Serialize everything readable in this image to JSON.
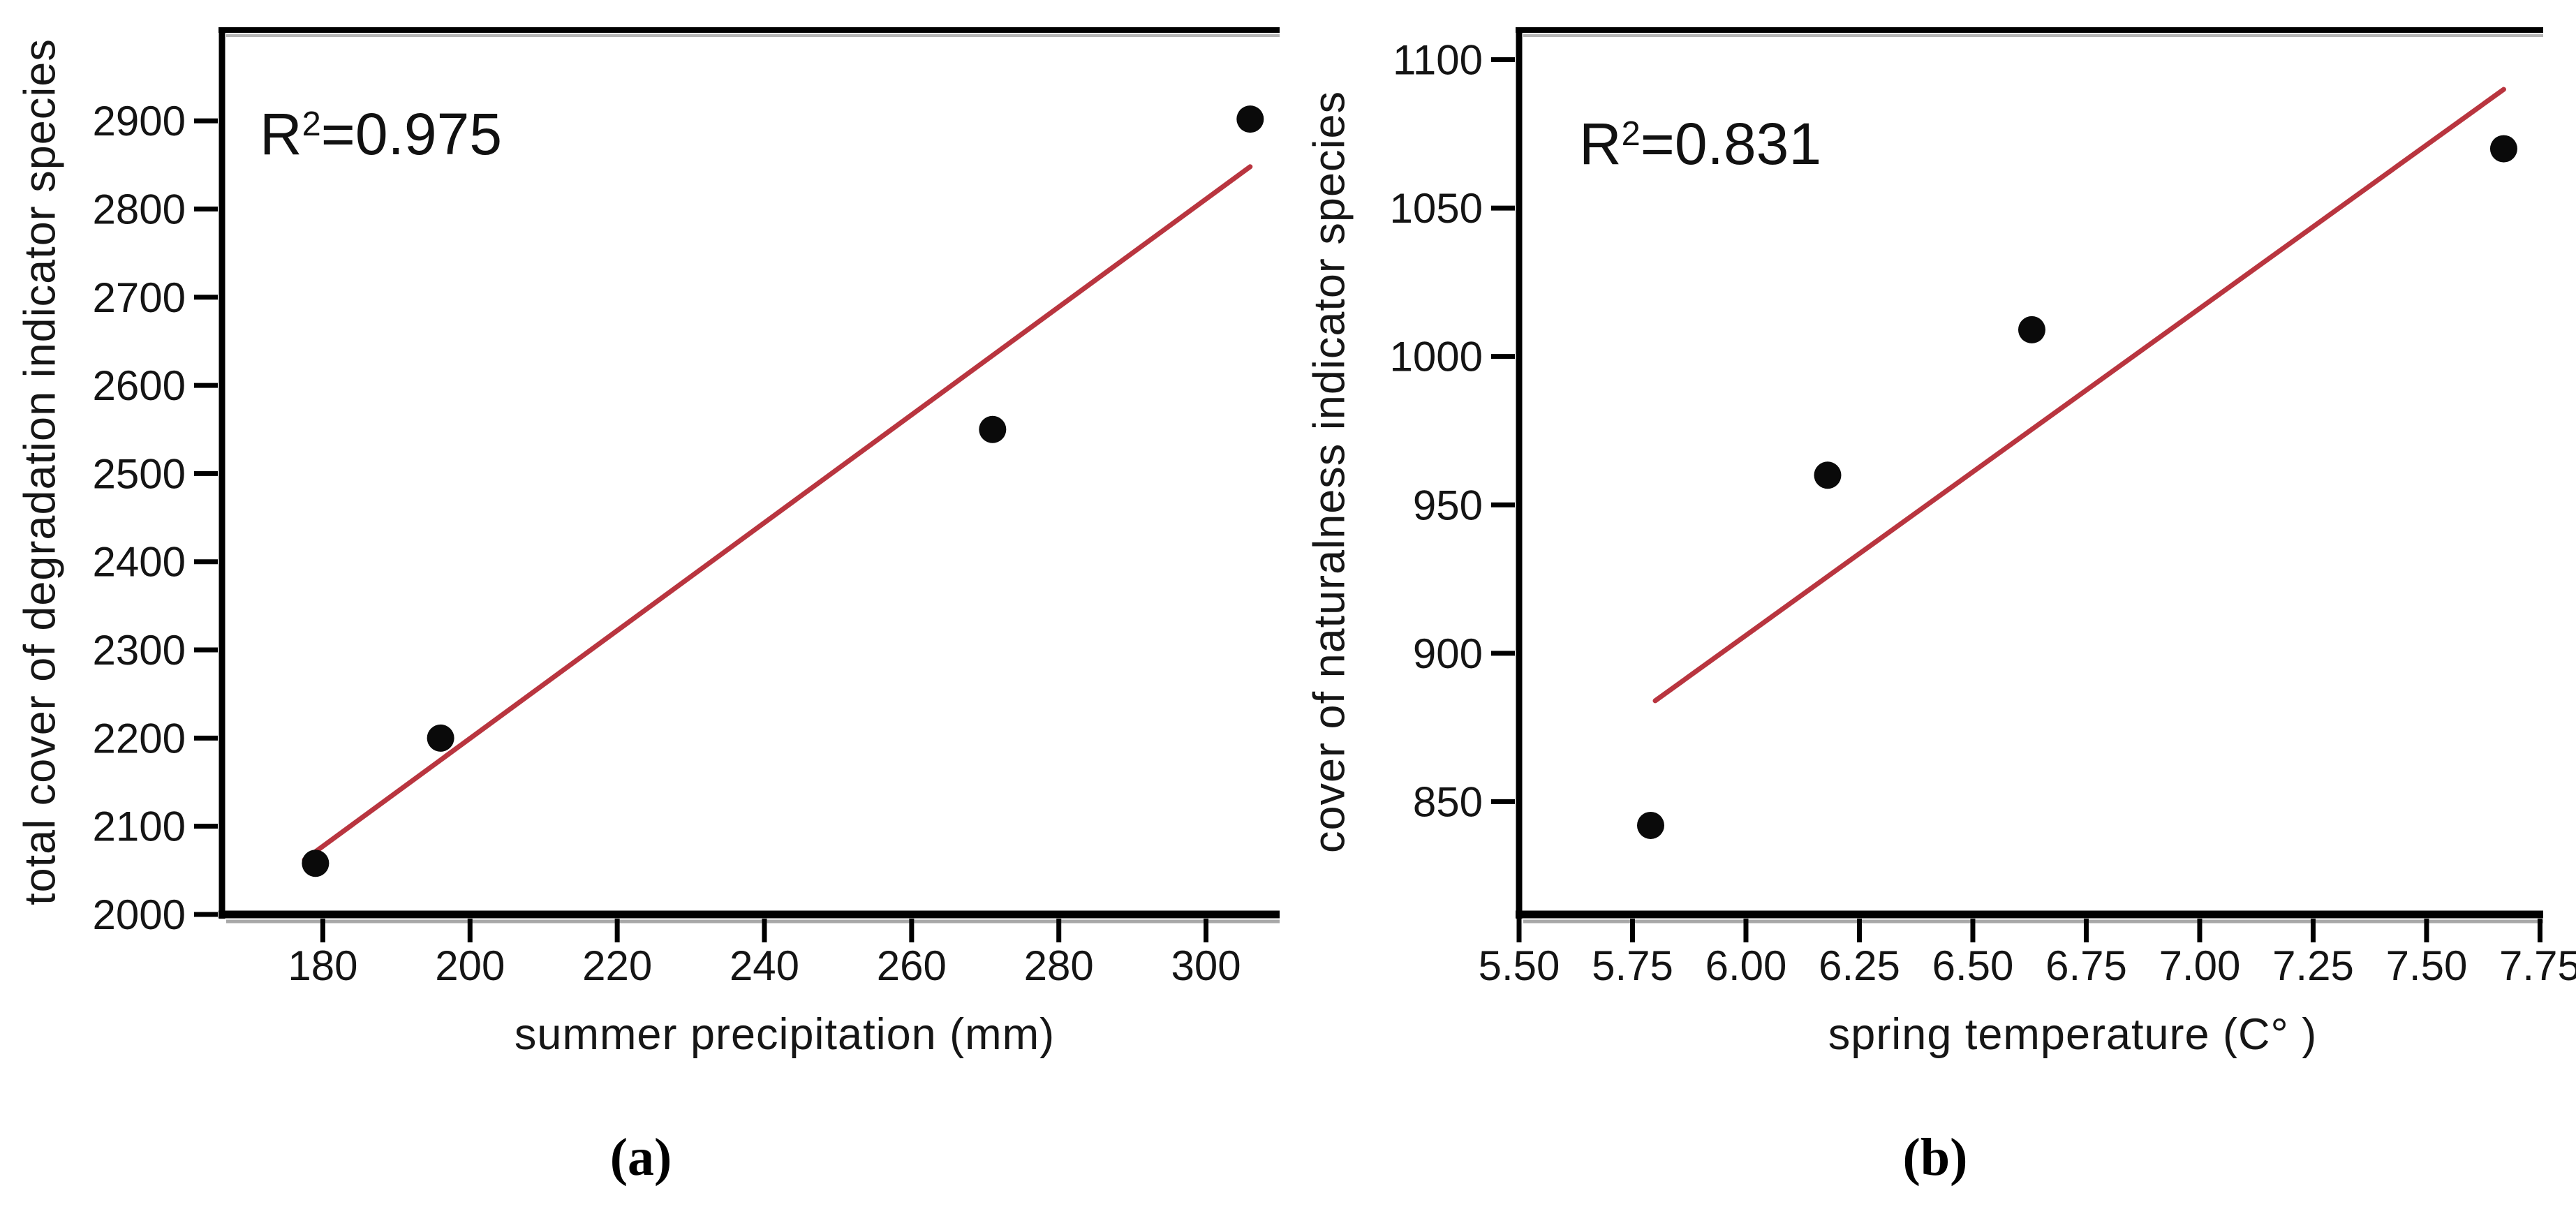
{
  "figure": {
    "background": "#ffffff",
    "text_color": "#161616",
    "axis_color": "#000000",
    "grid": false,
    "legend": false
  },
  "chart_data": [
    {
      "panel": "a",
      "type": "scatter",
      "caption": "(a)",
      "annotation": {
        "base": "R",
        "sup": "2",
        "rest": "=0.975",
        "display": "R2=0.975"
      },
      "xlabel": "summer precipitation (mm)",
      "ylabel": "total cover of degradation indicator species",
      "xlim": [
        166.3,
        310
      ],
      "ylim": [
        2000,
        3003
      ],
      "xticks": {
        "values": [
          180,
          200,
          220,
          240,
          260,
          280,
          300
        ],
        "labels": [
          "180",
          "200",
          "220",
          "240",
          "260",
          "280",
          "300"
        ]
      },
      "yticks": {
        "values": [
          2000,
          2100,
          2200,
          2300,
          2400,
          2500,
          2600,
          2700,
          2800,
          2900
        ],
        "labels": [
          "2000",
          "2100",
          "2200",
          "2300",
          "2400",
          "2500",
          "2600",
          "2700",
          "2800",
          "2900"
        ]
      },
      "points": [
        {
          "x": 179,
          "y": 2058
        },
        {
          "x": 196,
          "y": 2200
        },
        {
          "x": 271,
          "y": 2550
        },
        {
          "x": 306,
          "y": 2902
        }
      ],
      "point_color": "#0a0a0a",
      "trendline": {
        "x1": 177.5,
        "y1": 2062,
        "x2": 306,
        "y2": 2848,
        "color": "#b9353f"
      }
    },
    {
      "panel": "b",
      "type": "scatter",
      "caption": "(b)",
      "annotation": {
        "base": "R",
        "sup": "2",
        "rest": "=0.831",
        "display": "R2=0.831"
      },
      "xlabel": "spring temperature (C° )",
      "ylabel": "cover of naturalness indicator species",
      "xlim": [
        5.5,
        7.757
      ],
      "ylim": [
        812,
        1110
      ],
      "xticks": {
        "values": [
          5.5,
          5.75,
          6.0,
          6.25,
          6.5,
          6.75,
          7.0,
          7.25,
          7.5,
          7.75
        ],
        "labels": [
          "5.50",
          "5.75",
          "6.00",
          "6.25",
          "6.50",
          "6.75",
          "7.00",
          "7.25",
          "7.50",
          "7.75"
        ]
      },
      "yticks": {
        "values": [
          850,
          900,
          950,
          1000,
          1050,
          1100
        ],
        "labels": [
          "850",
          "900",
          "950",
          "1000",
          "1050",
          "1100"
        ]
      },
      "points": [
        {
          "x": 5.79,
          "y": 842
        },
        {
          "x": 6.18,
          "y": 960
        },
        {
          "x": 6.63,
          "y": 1009
        },
        {
          "x": 7.67,
          "y": 1070
        }
      ],
      "point_color": "#0a0a0a",
      "trendline": {
        "x1": 5.8,
        "y1": 884,
        "x2": 7.67,
        "y2": 1090,
        "color": "#b9353f"
      }
    }
  ]
}
